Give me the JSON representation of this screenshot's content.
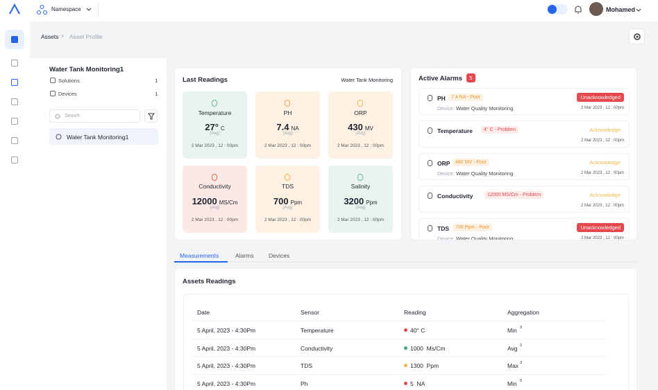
{
  "topbar": {
    "namespace": "Namespace",
    "user": "Mohamed"
  },
  "breadcrumb": [
    "Assets",
    "Asset Profile"
  ],
  "asset": {
    "name": "Water Tank Monitoring1",
    "stats": [
      {
        "label": "Solutions",
        "count": 1
      },
      {
        "label": "Devices",
        "count": 1
      }
    ],
    "search_placeholder": "Search",
    "list": [
      "Water Tank Monitoring1"
    ]
  },
  "readings": {
    "title": "Last Readings",
    "source": "Water Tank Monitoring",
    "cards": [
      {
        "name": "Temperature",
        "value": "27°",
        "unit": "C",
        "note": "(Avg)",
        "time": "2 Mar 2023 , 12 : 00pm",
        "color": "#eaf4ef",
        "icon": "#6cb89a"
      },
      {
        "name": "PH",
        "value": "7.4",
        "unit": "NA",
        "note": "(Avg)",
        "time": "2 Mar 2023 , 12 : 00pm",
        "color": "#fdf1e3",
        "icon": "#f0a64a"
      },
      {
        "name": "ORP",
        "value": "430",
        "unit": "MV",
        "note": "(Avg)",
        "time": "2 Mar 2023 , 12 : 00pm",
        "color": "#fdf1e3",
        "icon": "#f0b94a"
      },
      {
        "name": "Conductivity",
        "value": "12000",
        "unit": "MS/Cm",
        "note": "(Avg)",
        "time": "2 Mar 2023 , 12 : 00pm",
        "color": "#fbe9e6",
        "icon": "#e8685a"
      },
      {
        "name": "TDS",
        "value": "700",
        "unit": "Ppm",
        "note": "(Avg)",
        "time": "2 Mar 2023 , 12 : 00pm",
        "color": "#fdf1e3",
        "icon": "#f0b94a"
      },
      {
        "name": "Salinity",
        "value": "3200",
        "unit": "Ppm",
        "note": "(Avg)",
        "time": "2 Mar 2023 , 12 : 00pm",
        "color": "#eaf4ef",
        "icon": "#6cb89a"
      }
    ]
  },
  "alarms": {
    "title": "Active Alarms",
    "count": 5,
    "device_label": "Device:",
    "items": [
      {
        "sensor": "PH",
        "status": "7.4 NA - Poor",
        "status_kind": "poor",
        "device": "Water Quality Monitoring",
        "action": "Unacknowledged",
        "action_kind": "red",
        "time": "2 Mar 2023 , 12 : 00pm"
      },
      {
        "sensor": "Temperature",
        "status": "4° C - Problem",
        "status_kind": "problem",
        "device": null,
        "action": "Acknowledge",
        "action_kind": "yellow",
        "time": "2 Mar 2023 , 12 : 00pm"
      },
      {
        "sensor": "ORP",
        "status": "480 MV - Poor",
        "status_kind": "poor",
        "device": "Water Quality Monitoring",
        "action": "Acknowledge",
        "action_kind": "yellow",
        "time": "2 Mar 2023 , 12 : 00pm"
      },
      {
        "sensor": "Conductivity",
        "status": "12000 MS/Cm - Problem",
        "status_kind": "problem",
        "device": null,
        "action": "Acknowledge",
        "action_kind": "yellow",
        "time": "2 Mar 2023 , 12 : 00pm"
      },
      {
        "sensor": "TDS",
        "status": "700 Ppm - Poor",
        "status_kind": "poor",
        "device": "Water Quality Monitoring",
        "action": "Unacknowledged",
        "action_kind": "red",
        "time": "2 Mar 2023 , 12 : 00pm"
      }
    ]
  },
  "tabs": [
    "Measurements",
    "Alarms",
    "Devices"
  ],
  "table": {
    "title": "Assets Readings",
    "headers": [
      "Date",
      "Sensor",
      "Reading",
      "Aggregation"
    ],
    "rows": [
      {
        "date": "5 April, 2023 - 4:30Pm",
        "sensor": "Temperature",
        "reading": "40° C",
        "dot": "#e5484d",
        "agg": "Min",
        "agg_n": "3"
      },
      {
        "date": "5 April, 2023 - 4:30Pm",
        "sensor": "Conductivity",
        "reading": "1000  Ms/Cm",
        "dot": "#3fa37d",
        "agg": "Avg",
        "agg_n": "2"
      },
      {
        "date": "5 April, 2023 - 4:30Pm",
        "sensor": "TDS",
        "reading": "1300  Ppm",
        "dot": "#f0b94a",
        "agg": "Max",
        "agg_n": "3"
      },
      {
        "date": "5 April, 2023 - 4:30Pm",
        "sensor": "Ph",
        "reading": "5  NA",
        "dot": "#e5484d",
        "agg": "Min",
        "agg_n": "5"
      }
    ]
  }
}
